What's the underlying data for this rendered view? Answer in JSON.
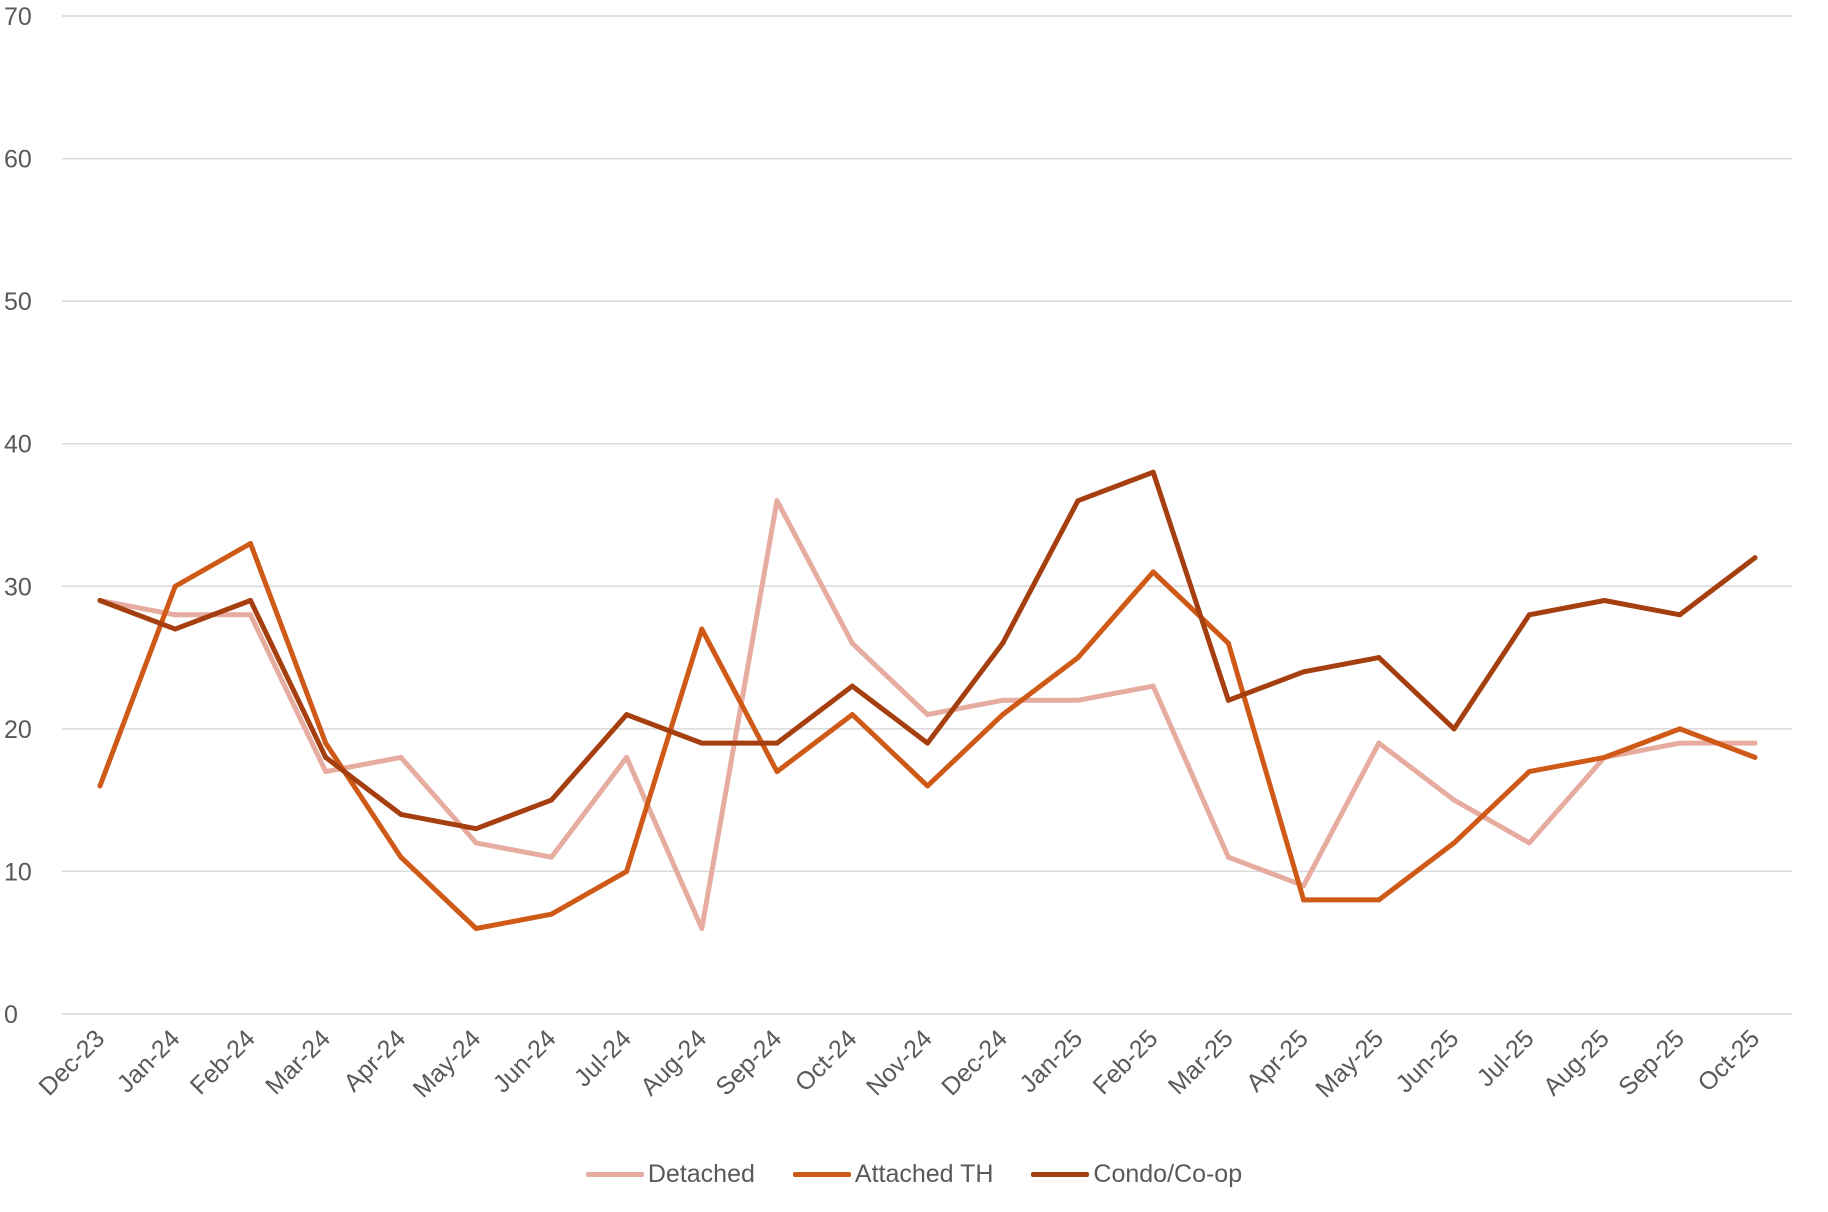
{
  "chart_data": {
    "type": "line",
    "categories": [
      "Dec-23",
      "Jan-24",
      "Feb-24",
      "Mar-24",
      "Apr-24",
      "May-24",
      "Jun-24",
      "Jul-24",
      "Aug-24",
      "Sep-24",
      "Oct-24",
      "Nov-24",
      "Dec-24",
      "Jan-25",
      "Feb-25",
      "Mar-25",
      "Apr-25",
      "May-25",
      "Jun-25",
      "Jul-25",
      "Aug-25",
      "Sep-25",
      "Oct-25"
    ],
    "ylim": [
      0,
      70
    ],
    "yticks": [
      0,
      10,
      20,
      30,
      40,
      50,
      60,
      70
    ],
    "grid": true,
    "legend_position": "bottom",
    "series": [
      {
        "name": "Detached",
        "color": "#e6aca0",
        "values": [
          29,
          28,
          28,
          17,
          18,
          12,
          11,
          18,
          6,
          36,
          26,
          21,
          22,
          22,
          23,
          11,
          9,
          19,
          15,
          12,
          18,
          19,
          19
        ]
      },
      {
        "name": "Attached TH",
        "color": "#cf5a18",
        "values": [
          16,
          30,
          33,
          19,
          11,
          6,
          7,
          10,
          27,
          17,
          21,
          16,
          21,
          25,
          31,
          26,
          8,
          8,
          12,
          17,
          18,
          20,
          18
        ]
      },
      {
        "name": "Condo/Co-op",
        "color": "#a63f10",
        "values": [
          29,
          27,
          29,
          18,
          14,
          13,
          15,
          21,
          19,
          19,
          23,
          19,
          26,
          36,
          38,
          22,
          24,
          25,
          20,
          28,
          29,
          28,
          32
        ]
      }
    ]
  }
}
